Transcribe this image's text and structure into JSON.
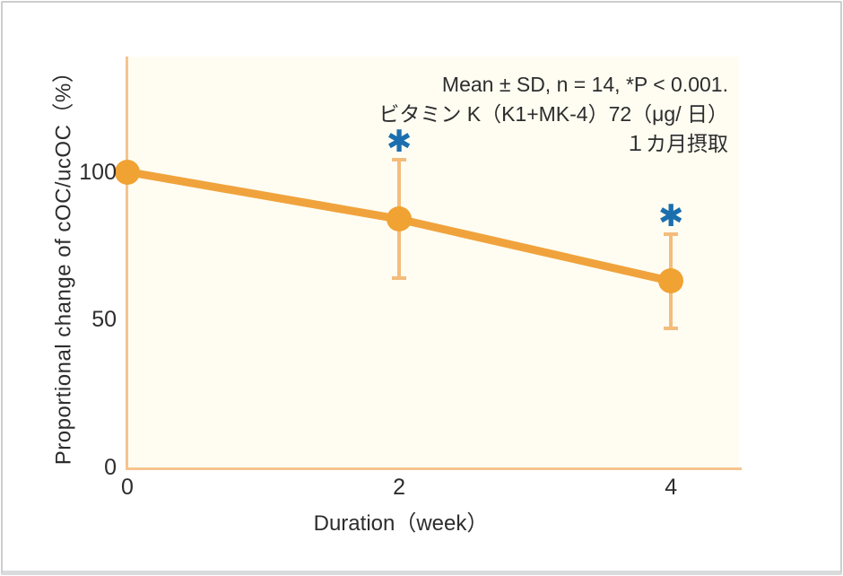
{
  "chart_data": {
    "type": "line",
    "title": "",
    "xlabel": "Duration（week）",
    "ylabel": "Proportional change of cOC/ucOC（%）",
    "x": [
      0,
      2,
      4
    ],
    "series": [
      {
        "name": "Proportional change of cOC/ucOC",
        "values": [
          100,
          84,
          63
        ],
        "sd": [
          0,
          20,
          16
        ],
        "significant": [
          false,
          true,
          true
        ]
      }
    ],
    "x_ticks": [
      0,
      2,
      4
    ],
    "y_ticks": [
      0,
      50,
      100
    ],
    "xlim": [
      0,
      4.5
    ],
    "ylim": [
      0,
      139
    ],
    "grid": false,
    "legend": "none",
    "significance_marker": "✱",
    "annotations": [
      "Mean ± SD, n = 14, *P < 0.001.",
      "ビタミン K（K1+MK-4）72（μg/ 日）",
      "１カ月摂取"
    ],
    "colors": {
      "series": "#F0A33C",
      "marker": "#F0A232",
      "error_bar": "#F3BC7D",
      "axis": "#F6C48E",
      "plot_background": "#FFFDF2",
      "significance": "#1C6FAE",
      "text": "#2D2D2D"
    }
  }
}
